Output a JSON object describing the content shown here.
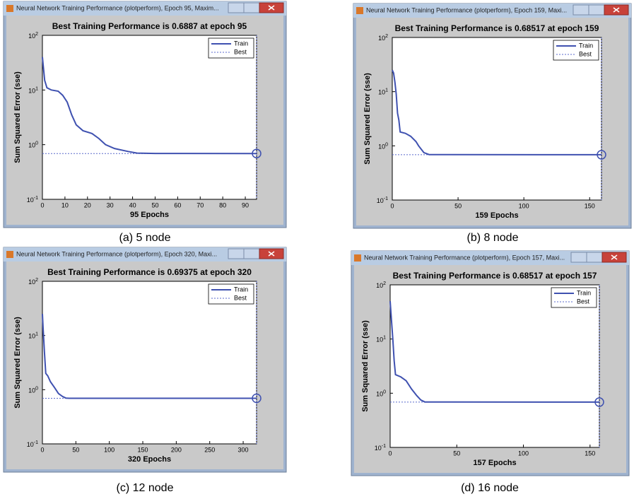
{
  "chart_data": [
    {
      "type": "line",
      "window_title": "Neural Network Training Performance (plotperform), Epoch 95, Maxim...",
      "title": "Best Training Performance is 0.6887 at epoch 95",
      "xlabel": "95 Epochs",
      "ylabel": "Sum Squared Error  (sse)",
      "caption": "(a) 5 node",
      "log_y": true,
      "legend": "upper right",
      "xlim": [
        0,
        95
      ],
      "xticks": [
        0,
        10,
        20,
        30,
        40,
        50,
        60,
        70,
        80,
        90
      ],
      "ylim": [
        0.1,
        100
      ],
      "yticks": [
        {
          "value": 0.1,
          "label": "10^-1"
        },
        {
          "value": 1,
          "label": "10^0"
        },
        {
          "value": 10,
          "label": "10^1"
        },
        {
          "value": 100,
          "label": "10^2"
        }
      ],
      "x": [
        0,
        1,
        2,
        4,
        7,
        9,
        11,
        13,
        15,
        18,
        22,
        25,
        28,
        32,
        38,
        42,
        50,
        95
      ],
      "series": [
        {
          "name": "Train",
          "color": "#3f51b0",
          "values": [
            40,
            15,
            11,
            10,
            9.5,
            8,
            6,
            3.5,
            2.3,
            1.8,
            1.6,
            1.3,
            1.0,
            0.85,
            0.75,
            0.7,
            0.69,
            0.6887
          ]
        }
      ],
      "best": {
        "name": "Best",
        "color": "#5a6acc",
        "epoch": 95,
        "value": 0.6887
      }
    },
    {
      "type": "line",
      "window_title": "Neural Network Training Performance (plotperform), Epoch 159, Maxi...",
      "title": "Best Training Performance is 0.68517 at epoch 159",
      "xlabel": "159 Epochs",
      "ylabel": "Sum Squared Error  (sse)",
      "caption": "(b) 8 node",
      "log_y": true,
      "legend": "upper right",
      "xlim": [
        0,
        159
      ],
      "xticks": [
        0,
        50,
        100,
        150
      ],
      "ylim": [
        0.1,
        100
      ],
      "yticks": [
        {
          "value": 0.1,
          "label": "10^-1"
        },
        {
          "value": 1,
          "label": "10^0"
        },
        {
          "value": 10,
          "label": "10^1"
        },
        {
          "value": 100,
          "label": "10^2"
        }
      ],
      "x": [
        0,
        1,
        2,
        3,
        4,
        5,
        6,
        10,
        14,
        18,
        20,
        24,
        28,
        159
      ],
      "series": [
        {
          "name": "Train",
          "color": "#3f51b0",
          "values": [
            25,
            22,
            15,
            9,
            4,
            3,
            1.8,
            1.7,
            1.5,
            1.2,
            1.0,
            0.75,
            0.69,
            0.68517
          ]
        }
      ],
      "best": {
        "name": "Best",
        "color": "#5a6acc",
        "epoch": 159,
        "value": 0.68517
      }
    },
    {
      "type": "line",
      "window_title": "Neural Network Training Performance (plotperform), Epoch 320, Maxi...",
      "title": "Best Training Performance is 0.69375 at epoch 320",
      "xlabel": "320 Epochs",
      "ylabel": "Sum Squared Error  (sse)",
      "caption": "(c) 12 node",
      "log_y": true,
      "legend": "upper right",
      "xlim": [
        0,
        320
      ],
      "xticks": [
        0,
        50,
        100,
        150,
        200,
        250,
        300
      ],
      "ylim": [
        0.1,
        100
      ],
      "yticks": [
        {
          "value": 0.1,
          "label": "10^-1"
        },
        {
          "value": 1,
          "label": "10^0"
        },
        {
          "value": 10,
          "label": "10^1"
        },
        {
          "value": 100,
          "label": "10^2"
        }
      ],
      "x": [
        0,
        1,
        3,
        5,
        8,
        12,
        18,
        24,
        30,
        35,
        40,
        320
      ],
      "series": [
        {
          "name": "Train",
          "color": "#3f51b0",
          "values": [
            25,
            14,
            5,
            2,
            1.8,
            1.4,
            1.1,
            0.85,
            0.75,
            0.7,
            0.694,
            0.69375
          ]
        }
      ],
      "best": {
        "name": "Best",
        "color": "#5a6acc",
        "epoch": 320,
        "value": 0.69375
      }
    },
    {
      "type": "line",
      "window_title": "Neural Network Training Performance (plotperform), Epoch 157, Maxi...",
      "title": "Best Training Performance is 0.68517 at epoch 157",
      "xlabel": "157 Epochs",
      "ylabel": "Sum Squared Error  (sse)",
      "caption": "(d) 16 node",
      "log_y": true,
      "legend": "upper right",
      "xlim": [
        0,
        157
      ],
      "xticks": [
        0,
        50,
        100,
        150
      ],
      "ylim": [
        0.1,
        100
      ],
      "yticks": [
        {
          "value": 0.1,
          "label": "10^-1"
        },
        {
          "value": 1,
          "label": "10^0"
        },
        {
          "value": 10,
          "label": "10^1"
        },
        {
          "value": 100,
          "label": "10^2"
        }
      ],
      "x": [
        0,
        1,
        2,
        3,
        4,
        8,
        12,
        16,
        20,
        23,
        26,
        157
      ],
      "series": [
        {
          "name": "Train",
          "color": "#3f51b0",
          "values": [
            50,
            22,
            10,
            4,
            2.2,
            2.0,
            1.7,
            1.2,
            0.9,
            0.75,
            0.69,
            0.68517
          ]
        }
      ],
      "best": {
        "name": "Best",
        "color": "#5a6acc",
        "epoch": 157,
        "value": 0.68517
      }
    }
  ]
}
